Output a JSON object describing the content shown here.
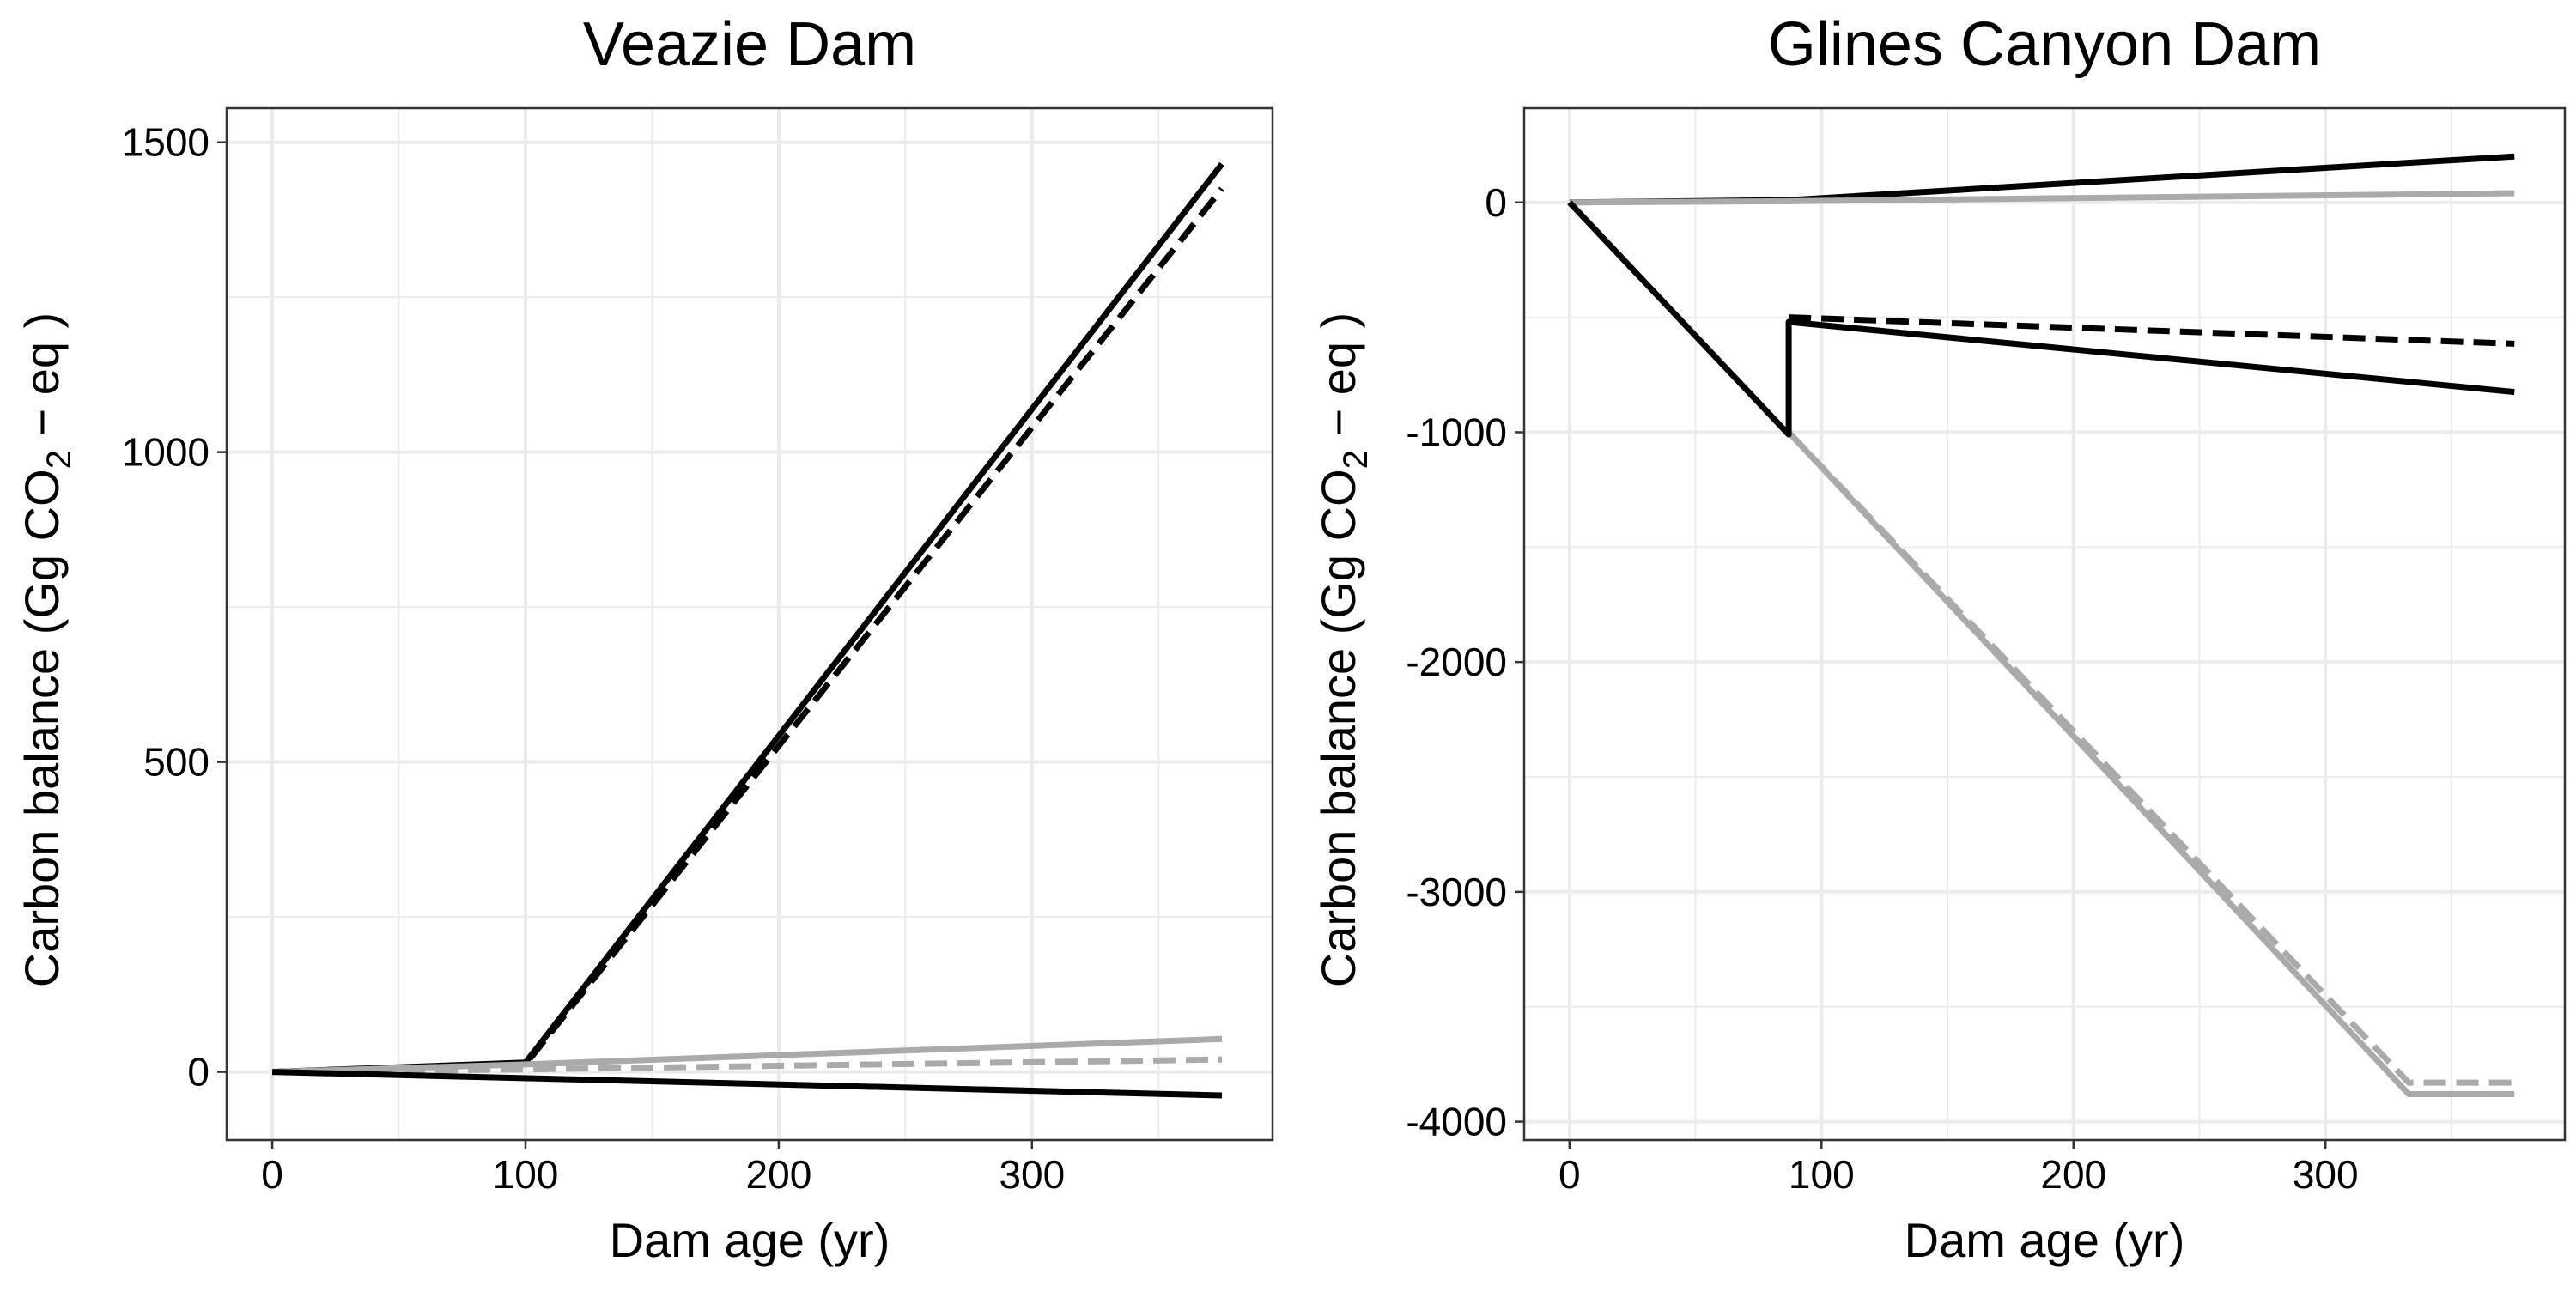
{
  "colors": {
    "black": "#000000",
    "gray": "#aaaaaa",
    "grid": "#ebebeb",
    "panel_border": "#333333"
  },
  "chart_data": [
    {
      "type": "line",
      "title": "Veazie Dam",
      "xlabel": "Dam age (yr)",
      "ylabel": {
        "prefix": "Carbon balance (Gg CO",
        "subscript": "2",
        "suffix": " − eq )"
      },
      "xlim": [
        -18,
        395
      ],
      "ylim": [
        -110,
        1555
      ],
      "x_ticks": [
        0,
        100,
        200,
        300
      ],
      "x_tick_labels": [
        "0",
        "100",
        "200",
        "300"
      ],
      "y_ticks": [
        0,
        500,
        1000,
        1500
      ],
      "y_tick_labels": [
        "0",
        "500",
        "1000",
        "1500"
      ],
      "grid": true,
      "series": [
        {
          "color": "black",
          "dash": false,
          "points": [
            [
              0,
              0
            ],
            [
              100,
              15
            ],
            [
              375,
              1465
            ]
          ]
        },
        {
          "color": "black",
          "dash": true,
          "points": [
            [
              0,
              0
            ],
            [
              100,
              12
            ],
            [
              375,
              1425
            ]
          ]
        },
        {
          "color": "gray",
          "dash": false,
          "points": [
            [
              0,
              0
            ],
            [
              100,
              12
            ],
            [
              375,
              53
            ]
          ]
        },
        {
          "color": "gray",
          "dash": true,
          "points": [
            [
              0,
              0
            ],
            [
              100,
              4
            ],
            [
              375,
              20
            ]
          ]
        },
        {
          "color": "black",
          "dash": false,
          "points": [
            [
              0,
              0
            ],
            [
              375,
              -38
            ]
          ]
        }
      ]
    },
    {
      "type": "line",
      "title": "Glines Canyon Dam",
      "xlabel": "Dam age (yr)",
      "ylabel": {
        "prefix": "Carbon balance (Gg CO",
        "subscript": "2",
        "suffix": " − eq )"
      },
      "xlim": [
        -18,
        395
      ],
      "ylim": [
        -4080,
        410
      ],
      "x_ticks": [
        0,
        100,
        200,
        300
      ],
      "x_tick_labels": [
        "0",
        "100",
        "200",
        "300"
      ],
      "y_ticks": [
        -4000,
        -3000,
        -2000,
        -1000,
        0
      ],
      "y_tick_labels": [
        "-4000",
        "-3000",
        "-2000",
        "-1000",
        "0"
      ],
      "grid": true,
      "series": [
        {
          "color": "black",
          "dash": false,
          "points": [
            [
              0,
              0
            ],
            [
              87,
              10
            ],
            [
              375,
              200
            ]
          ]
        },
        {
          "color": "gray",
          "dash": false,
          "points": [
            [
              0,
              0
            ],
            [
              87,
              5
            ],
            [
              375,
              40
            ]
          ]
        },
        {
          "color": "gray",
          "dash": true,
          "points": [
            [
              87,
              -1000
            ],
            [
              333,
              -3830
            ],
            [
              375,
              -3830
            ]
          ]
        },
        {
          "color": "gray",
          "dash": false,
          "points": [
            [
              87,
              -1000
            ],
            [
              333,
              -3880
            ],
            [
              375,
              -3880
            ]
          ]
        },
        {
          "color": "black",
          "dash": true,
          "points": [
            [
              87,
              -500
            ],
            [
              375,
              -615
            ]
          ]
        },
        {
          "color": "black",
          "dash": false,
          "points": [
            [
              0,
              0
            ],
            [
              87,
              -1010
            ],
            [
              87,
              -520
            ],
            [
              375,
              -825
            ]
          ]
        }
      ]
    }
  ]
}
